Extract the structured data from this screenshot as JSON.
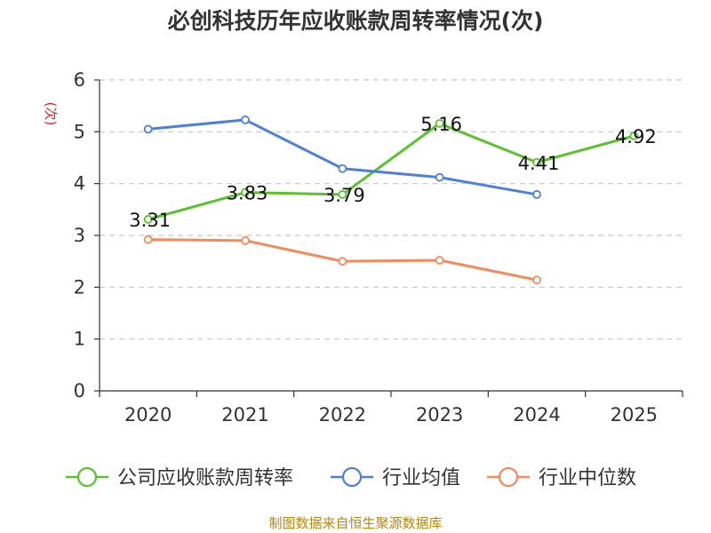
{
  "chart_data": {
    "type": "line",
    "title": "必创科技历年应收账款周转率情况(次)",
    "ylabel": "(次)",
    "xlabel": "",
    "ylim": [
      0,
      6
    ],
    "yticks": [
      0,
      1,
      2,
      3,
      4,
      5,
      6
    ],
    "categories": [
      "2020",
      "2021",
      "2022",
      "2023",
      "2024",
      "2025"
    ],
    "grid": true,
    "legend_position": "bottom",
    "series": [
      {
        "name": "公司应收账款周转率",
        "color": "#5bc12d",
        "show_labels": true,
        "values": [
          3.31,
          3.83,
          3.79,
          5.16,
          4.41,
          4.92
        ],
        "labels": [
          "3.31",
          "3.83",
          "3.79",
          "5.16",
          "4.41",
          "4.92"
        ]
      },
      {
        "name": "行业均值",
        "color": "#4f7fdc",
        "show_labels": false,
        "values": [
          5.05,
          5.23,
          4.29,
          4.12,
          3.79,
          null
        ]
      },
      {
        "name": "行业中位数",
        "color": "#f4895a",
        "show_labels": false,
        "values": [
          2.92,
          2.9,
          2.5,
          2.52,
          2.14,
          null
        ]
      }
    ]
  },
  "source": "制图数据来自恒生聚源数据库"
}
